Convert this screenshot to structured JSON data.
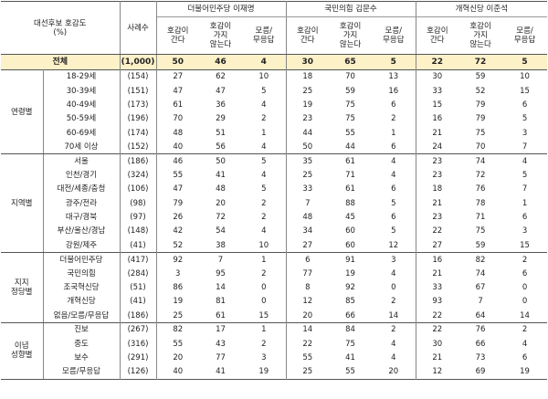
{
  "header": {
    "title_line1": "대선후보 호감도",
    "title_line2": "(%)",
    "n_label": "사례수",
    "candidates": [
      "더불어민주당 이재명",
      "국민의힘 김문수",
      "개혁신당 이준석"
    ],
    "columns": [
      [
        "호감이",
        "간다"
      ],
      [
        "호감이",
        "가지",
        "않는다"
      ],
      [
        "모름/",
        "무응답"
      ]
    ]
  },
  "total": {
    "label": "전체",
    "n": "(1,000)",
    "values": [
      "50",
      "46",
      "4",
      "30",
      "65",
      "5",
      "22",
      "72",
      "5"
    ]
  },
  "groups": [
    {
      "label": [
        "연령별"
      ],
      "rows": [
        {
          "label": "18-29세",
          "n": "(154)",
          "values": [
            "27",
            "62",
            "10",
            "18",
            "70",
            "13",
            "30",
            "59",
            "10"
          ]
        },
        {
          "label": "30-39세",
          "n": "(151)",
          "values": [
            "47",
            "47",
            "5",
            "25",
            "59",
            "16",
            "33",
            "52",
            "15"
          ]
        },
        {
          "label": "40-49세",
          "n": "(173)",
          "values": [
            "61",
            "36",
            "4",
            "19",
            "75",
            "6",
            "15",
            "79",
            "6"
          ]
        },
        {
          "label": "50-59세",
          "n": "(196)",
          "values": [
            "70",
            "29",
            "2",
            "23",
            "75",
            "2",
            "16",
            "79",
            "5"
          ]
        },
        {
          "label": "60-69세",
          "n": "(174)",
          "values": [
            "48",
            "51",
            "1",
            "44",
            "55",
            "1",
            "21",
            "75",
            "3"
          ]
        },
        {
          "label": "70세 이상",
          "n": "(152)",
          "values": [
            "40",
            "56",
            "4",
            "50",
            "44",
            "6",
            "24",
            "70",
            "7"
          ]
        }
      ]
    },
    {
      "label": [
        "지역별"
      ],
      "rows": [
        {
          "label": "서울",
          "n": "(186)",
          "values": [
            "46",
            "50",
            "5",
            "35",
            "61",
            "4",
            "23",
            "74",
            "4"
          ]
        },
        {
          "label": "인천/경기",
          "n": "(324)",
          "values": [
            "55",
            "41",
            "4",
            "25",
            "71",
            "4",
            "23",
            "72",
            "5"
          ]
        },
        {
          "label": "대전/세종/충청",
          "n": "(106)",
          "values": [
            "47",
            "48",
            "5",
            "33",
            "61",
            "6",
            "18",
            "76",
            "7"
          ]
        },
        {
          "label": "광주/전라",
          "n": "(98)",
          "values": [
            "79",
            "20",
            "2",
            "7",
            "88",
            "5",
            "21",
            "78",
            "1"
          ]
        },
        {
          "label": "대구/경북",
          "n": "(97)",
          "values": [
            "26",
            "72",
            "2",
            "48",
            "45",
            "6",
            "23",
            "71",
            "6"
          ]
        },
        {
          "label": "부산/울산/경남",
          "n": "(148)",
          "values": [
            "42",
            "54",
            "4",
            "34",
            "60",
            "5",
            "22",
            "75",
            "3"
          ]
        },
        {
          "label": "강원/제주",
          "n": "(41)",
          "values": [
            "52",
            "38",
            "10",
            "27",
            "60",
            "12",
            "27",
            "59",
            "15"
          ]
        }
      ]
    },
    {
      "label": [
        "지지",
        "정당별"
      ],
      "rows": [
        {
          "label": "더불어민주당",
          "n": "(417)",
          "values": [
            "92",
            "7",
            "1",
            "6",
            "91",
            "3",
            "16",
            "82",
            "2"
          ]
        },
        {
          "label": "국민의힘",
          "n": "(284)",
          "values": [
            "3",
            "95",
            "2",
            "77",
            "19",
            "4",
            "21",
            "74",
            "6"
          ]
        },
        {
          "label": "조국혁신당",
          "n": "(51)",
          "values": [
            "86",
            "14",
            "0",
            "8",
            "92",
            "0",
            "33",
            "67",
            "0"
          ]
        },
        {
          "label": "개혁신당",
          "n": "(41)",
          "values": [
            "19",
            "81",
            "0",
            "12",
            "85",
            "2",
            "93",
            "7",
            "0"
          ]
        },
        {
          "label": "없음/모름/무응답",
          "n": "(186)",
          "values": [
            "25",
            "61",
            "15",
            "20",
            "66",
            "14",
            "22",
            "64",
            "14"
          ]
        }
      ]
    },
    {
      "label": [
        "이념",
        "성향별"
      ],
      "rows": [
        {
          "label": "진보",
          "n": "(267)",
          "values": [
            "82",
            "17",
            "1",
            "14",
            "84",
            "2",
            "22",
            "76",
            "2"
          ]
        },
        {
          "label": "중도",
          "n": "(316)",
          "values": [
            "55",
            "43",
            "2",
            "22",
            "75",
            "4",
            "30",
            "66",
            "4"
          ]
        },
        {
          "label": "보수",
          "n": "(291)",
          "values": [
            "20",
            "77",
            "3",
            "55",
            "41",
            "4",
            "21",
            "73",
            "6"
          ]
        },
        {
          "label": "모름/무응답",
          "n": "(126)",
          "values": [
            "40",
            "41",
            "19",
            "25",
            "55",
            "20",
            "12",
            "69",
            "19"
          ]
        }
      ]
    }
  ]
}
